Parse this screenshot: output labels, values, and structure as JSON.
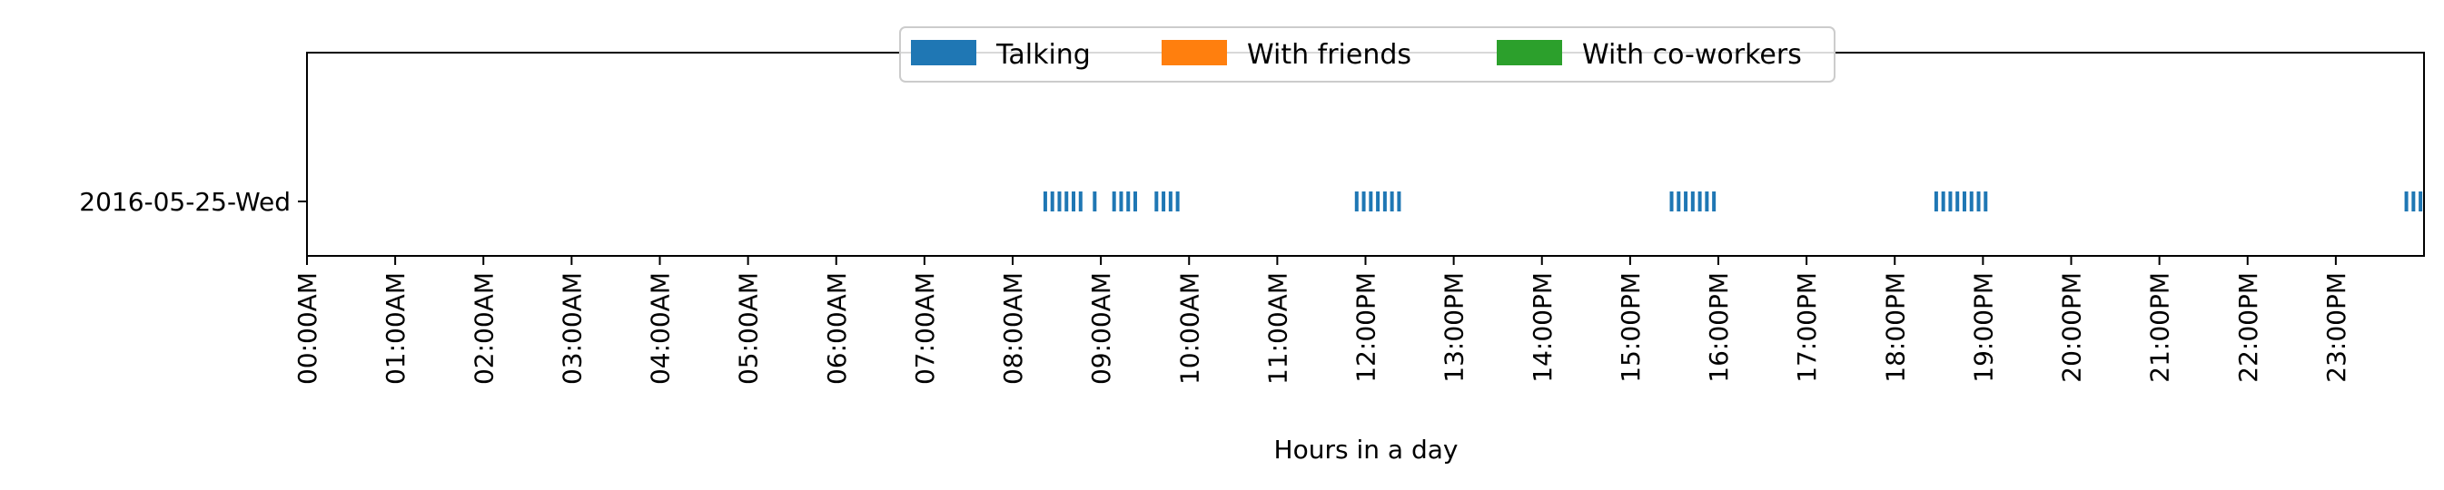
{
  "chart_data": {
    "type": "event-timeline",
    "xlabel": "Hours in a day",
    "x_unit": "hour of day",
    "xlim": [
      0,
      24
    ],
    "x_tick_labels": [
      "00:00AM",
      "01:00AM",
      "02:00AM",
      "03:00AM",
      "04:00AM",
      "05:00AM",
      "06:00AM",
      "07:00AM",
      "08:00AM",
      "09:00AM",
      "10:00AM",
      "11:00AM",
      "12:00PM",
      "13:00PM",
      "14:00PM",
      "15:00PM",
      "16:00PM",
      "17:00PM",
      "18:00PM",
      "19:00PM",
      "20:00PM",
      "21:00PM",
      "22:00PM",
      "23:00PM"
    ],
    "categories": [
      "2016-05-25-Wed"
    ],
    "legend": {
      "placement": "top-center",
      "columns": 3
    },
    "grid": false,
    "series": [
      {
        "name": "Talking",
        "color": "#1f77b4",
        "events": [
          {
            "category": "2016-05-25-Wed",
            "times": [
              8.37,
              8.45,
              8.53,
              8.61,
              8.69,
              8.77,
              8.93,
              9.15,
              9.23,
              9.31,
              9.39,
              9.63,
              9.71,
              9.79,
              9.87,
              11.9,
              11.98,
              12.06,
              12.14,
              12.22,
              12.3,
              12.38,
              15.47,
              15.55,
              15.63,
              15.71,
              15.79,
              15.87,
              15.95,
              18.47,
              18.55,
              18.63,
              18.71,
              18.79,
              18.87,
              18.95,
              19.03,
              23.8,
              23.88,
              23.96
            ]
          }
        ]
      },
      {
        "name": "With friends",
        "color": "#ff7f0e",
        "events": []
      },
      {
        "name": "With co-workers",
        "color": "#2ca02c",
        "events": []
      }
    ]
  }
}
